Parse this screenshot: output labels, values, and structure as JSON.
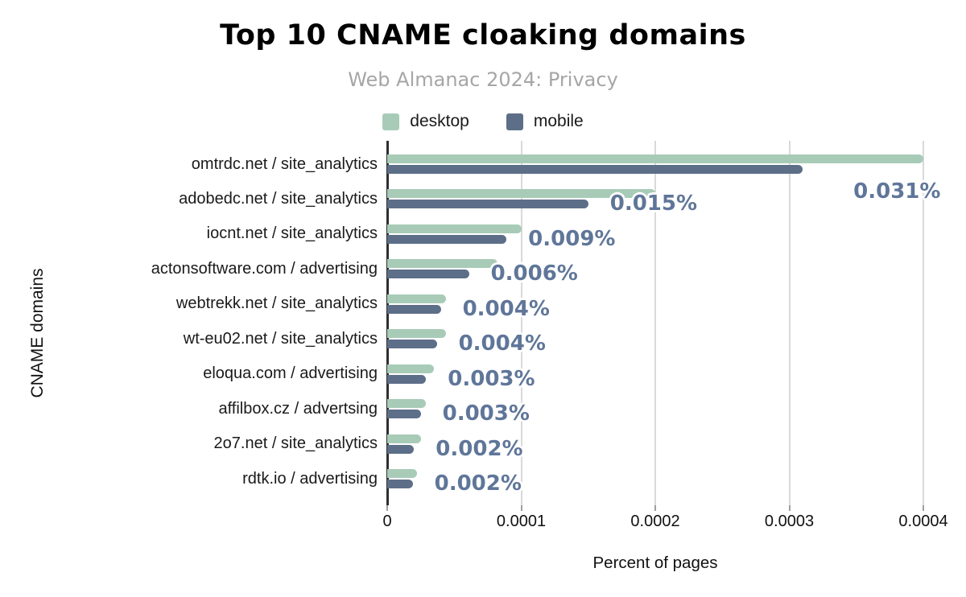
{
  "title": "Top 10 CNAME cloaking domains",
  "subtitle": "Web Almanac 2024: Privacy",
  "colors": {
    "desktop_bar": "#a8cbb8",
    "mobile_bar": "#5d6e88",
    "data_label": "#5f7699",
    "subtitle_text": "#a6a6a6",
    "gridline": "#d9d9d9",
    "axis_line": "#2f2f2f"
  },
  "chart_data": {
    "type": "bar",
    "orientation": "horizontal",
    "title": "Top 10 CNAME cloaking domains",
    "subtitle": "Web Almanac 2024: Privacy",
    "xlabel": "Percent of pages",
    "ylabel": "CNAME domains",
    "xlim": [
      0,
      0.0004
    ],
    "x_ticks": [
      0,
      0.0001,
      0.0002,
      0.0003,
      0.0004
    ],
    "x_tick_labels": [
      "0",
      "0.0001",
      "0.0002",
      "0.0003",
      "0.0004"
    ],
    "grid": true,
    "legend_position": "top",
    "categories": [
      "omtrdc.net / site_analytics",
      "adobedc.net / site_analytics",
      "iocnt.net / site_analytics",
      "actonsoftware.com / advertising",
      "webtrekk.net / site_analytics",
      "wt-eu02.net / site_analytics",
      "eloqua.com / advertising",
      "affilbox.cz / advertsing",
      "2o7.net / site_analytics",
      "rdtk.io / advertising"
    ],
    "series": [
      {
        "name": "desktop",
        "color": "#a8cbb8",
        "values": [
          0.0004,
          0.0002,
          0.0001,
          8.2e-05,
          4.4e-05,
          4.4e-05,
          3.5e-05,
          2.9e-05,
          2.5e-05,
          2.2e-05
        ]
      },
      {
        "name": "mobile",
        "color": "#5d6e88",
        "values": [
          0.00031,
          0.00015,
          8.9e-05,
          6.1e-05,
          4e-05,
          3.7e-05,
          2.9e-05,
          2.5e-05,
          2e-05,
          1.9e-05
        ]
      }
    ],
    "data_labels": [
      "0.031%",
      "0.015%",
      "0.009%",
      "0.006%",
      "0.004%",
      "0.004%",
      "0.003%",
      "0.003%",
      "0.002%",
      "0.002%"
    ]
  }
}
